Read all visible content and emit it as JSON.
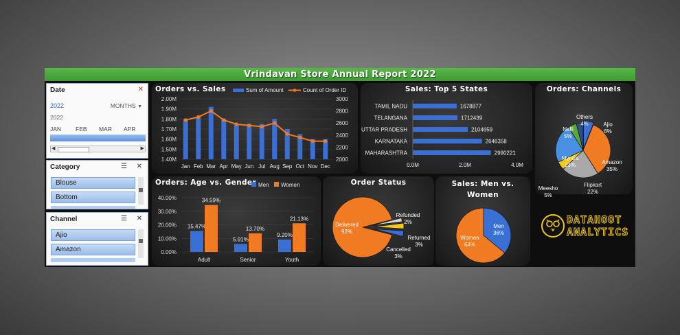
{
  "report": {
    "title": "Vrindavan Store Annual Report 2022"
  },
  "slicers": {
    "date": {
      "title": "Date",
      "year": "2022",
      "level": "MONTHS",
      "year_row": "2022",
      "months": [
        "JAN",
        "FEB",
        "MAR",
        "APR"
      ]
    },
    "category": {
      "title": "Category",
      "items": [
        "Blouse",
        "Bottom"
      ]
    },
    "channel": {
      "title": "Channel",
      "items": [
        "Ajio",
        "Amazon"
      ]
    }
  },
  "logo": {
    "line1": "DATAHOOT",
    "line2": "ANALYTICS"
  },
  "colors": {
    "blue": "#3a6fd4",
    "orange": "#f07b22",
    "green_title": "#4aa83d"
  },
  "chart_data": [
    {
      "id": "orders_vs_sales",
      "type": "bar+line",
      "title": "Orders vs. Sales",
      "categories": [
        "Jan",
        "Feb",
        "Mar",
        "Apr",
        "May",
        "Jun",
        "Jul",
        "Aug",
        "Sep",
        "Oct",
        "Nov",
        "Dec"
      ],
      "series": [
        {
          "name": "Sum of Amount",
          "type": "bar",
          "axis": "left",
          "values": [
            1800000,
            1820000,
            1920000,
            1800000,
            1750000,
            1750000,
            1750000,
            1800000,
            1700000,
            1650000,
            1600000,
            1600000
          ]
        },
        {
          "name": "Count of Order ID",
          "type": "line",
          "axis": "right",
          "values": [
            2650,
            2700,
            2800,
            2650,
            2580,
            2560,
            2540,
            2600,
            2420,
            2360,
            2300,
            2300
          ]
        }
      ],
      "left_axis": {
        "ticks": [
          "1.40M",
          "1.50M",
          "1.60M",
          "1.70M",
          "1.80M",
          "1.90M",
          "2.00M"
        ],
        "range": [
          1400000,
          2000000
        ]
      },
      "right_axis": {
        "ticks": [
          "2000",
          "2200",
          "2400",
          "2600",
          "2800",
          "3000"
        ],
        "range": [
          2000,
          3000
        ]
      },
      "legend": "top"
    },
    {
      "id": "top5_states",
      "type": "hbar",
      "title": "Sales: Top 5 States",
      "categories": [
        "TAMIL NADU",
        "TELANGANA",
        "UTTAR PRADESH",
        "KARNATAKA",
        "MAHARASHTRA"
      ],
      "values": [
        1678877,
        1712439,
        2104659,
        2646358,
        2990221
      ],
      "value_labels": [
        "1678877",
        "1712439",
        "2104659",
        "2646358",
        "2990221"
      ],
      "x_ticks": [
        "0.0M",
        "2.0M",
        "4.0M"
      ],
      "xlim": [
        0,
        4000000
      ]
    },
    {
      "id": "orders_channels",
      "type": "pie",
      "title": "Orders: Channels",
      "slices": [
        {
          "label": "Ajio",
          "value": 6,
          "pct": "6%"
        },
        {
          "label": "Amazon",
          "value": 35,
          "pct": "35%"
        },
        {
          "label": "Flipkart",
          "value": 22,
          "pct": "22%"
        },
        {
          "label": "Meesho",
          "value": 5,
          "pct": "5%"
        },
        {
          "label": "Myntra",
          "value": 23,
          "pct": "23%"
        },
        {
          "label": "Nalli",
          "value": 5,
          "pct": "5%"
        },
        {
          "label": "Others",
          "value": 4,
          "pct": "4%"
        }
      ]
    },
    {
      "id": "age_gender",
      "type": "bar",
      "title": "Orders: Age vs. Gender",
      "categories": [
        "Adult",
        "Senior",
        "Youth"
      ],
      "series": [
        {
          "name": "Men",
          "values": [
            15.47,
            5.91,
            9.2
          ],
          "labels": [
            "15.47%",
            "5.91%",
            "9.20%"
          ]
        },
        {
          "name": "Women",
          "values": [
            34.59,
            13.7,
            21.13
          ],
          "labels": [
            "34.59%",
            "13.70%",
            "21.13%"
          ]
        }
      ],
      "y_ticks": [
        "0.00%",
        "10.00%",
        "20.00%",
        "30.00%",
        "40.00%"
      ],
      "ylim": [
        0,
        40
      ],
      "legend": "top"
    },
    {
      "id": "order_status",
      "type": "pie",
      "title": "Order Status",
      "slices": [
        {
          "label": "Delivered",
          "value": 92,
          "pct": "92%"
        },
        {
          "label": "Refunded",
          "value": 2,
          "pct": "2%"
        },
        {
          "label": "Returned",
          "value": 3,
          "pct": "3%"
        },
        {
          "label": "Cancelled",
          "value": 3,
          "pct": "3%"
        }
      ]
    },
    {
      "id": "men_women",
      "type": "pie",
      "title": "Sales: Men vs. Women",
      "slices": [
        {
          "label": "Men",
          "value": 36,
          "pct": "36%"
        },
        {
          "label": "Women",
          "value": 64,
          "pct": "64%"
        }
      ]
    }
  ]
}
